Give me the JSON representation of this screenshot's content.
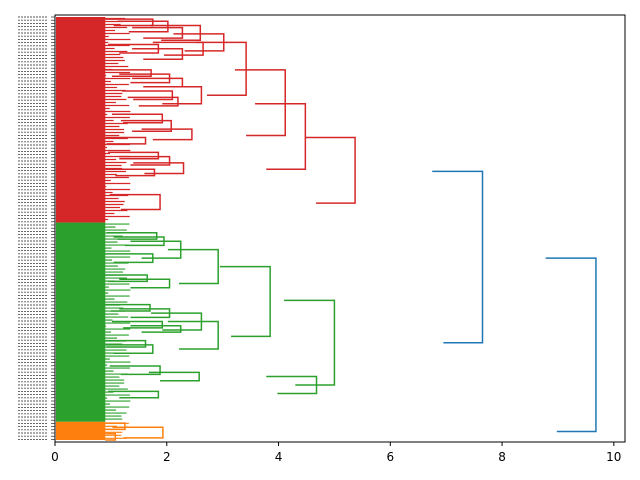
{
  "chart_data": {
    "type": "dendrogram",
    "orientation": "right",
    "title": "",
    "xlabel": "",
    "ylabel": "",
    "xlim": [
      0,
      10.2
    ],
    "xticks": [
      0,
      2,
      4,
      6,
      8,
      10
    ],
    "xtick_labels": [
      "0",
      "2",
      "4",
      "6",
      "8",
      "10"
    ],
    "leaf_labels_legible": false,
    "colors": {
      "cluster_red": "#d62728",
      "cluster_green": "#2ca02c",
      "cluster_orange": "#ff7f0e",
      "above_threshold": "#1f77b4",
      "axis": "#000000",
      "background": "#ffffff"
    },
    "clusters": [
      {
        "name": "red",
        "color": "#d62728",
        "approx_leaf_fraction": 0.486,
        "merge_height": 5.37
      },
      {
        "name": "green",
        "color": "#2ca02c",
        "approx_leaf_fraction": 0.471,
        "merge_height": 5.0
      },
      {
        "name": "orange",
        "color": "#ff7f0e",
        "approx_leaf_fraction": 0.07,
        "merge_height": 1.93
      }
    ],
    "top_merges": [
      {
        "left": "red",
        "right": "green",
        "height": 7.65
      },
      {
        "left": "red+green",
        "right": "orange",
        "height": 9.68
      }
    ],
    "links": [
      {
        "color": "red",
        "y": [
          0.01,
          0.04
        ],
        "h": 1.75
      },
      {
        "color": "red",
        "y": [
          0.02,
          0.07
        ],
        "h": 2.02
      },
      {
        "color": "red",
        "y": [
          0.05,
          0.1
        ],
        "h": 2.28
      },
      {
        "color": "red",
        "y": [
          0.04,
          0.11
        ],
        "h": 2.6
      },
      {
        "color": "red",
        "y": [
          0.13,
          0.17
        ],
        "h": 1.85
      },
      {
        "color": "red",
        "y": [
          0.15,
          0.2
        ],
        "h": 2.28
      },
      {
        "color": "red",
        "y": [
          0.12,
          0.18
        ],
        "h": 2.65
      },
      {
        "color": "red",
        "y": [
          0.08,
          0.16
        ],
        "h": 3.02
      },
      {
        "color": "red",
        "y": [
          0.25,
          0.28
        ],
        "h": 1.72
      },
      {
        "color": "red",
        "y": [
          0.27,
          0.31
        ],
        "h": 2.05
      },
      {
        "color": "red",
        "y": [
          0.29,
          0.33
        ],
        "h": 2.28
      },
      {
        "color": "red",
        "y": [
          0.35,
          0.39
        ],
        "h": 2.1
      },
      {
        "color": "red",
        "y": [
          0.38,
          0.42
        ],
        "h": 2.2
      },
      {
        "color": "red",
        "y": [
          0.33,
          0.41
        ],
        "h": 2.62
      },
      {
        "color": "red",
        "y": [
          0.12,
          0.37
        ],
        "h": 3.42
      },
      {
        "color": "red",
        "y": [
          0.46,
          0.5
        ],
        "h": 1.92
      },
      {
        "color": "red",
        "y": [
          0.49,
          0.54
        ],
        "h": 2.08
      },
      {
        "color": "red",
        "y": [
          0.57,
          0.6
        ],
        "h": 1.62
      },
      {
        "color": "red",
        "y": [
          0.53,
          0.58
        ],
        "h": 2.45
      },
      {
        "color": "red",
        "y": [
          0.25,
          0.56
        ],
        "h": 4.12
      },
      {
        "color": "red",
        "y": [
          0.64,
          0.67
        ],
        "h": 1.85
      },
      {
        "color": "red",
        "y": [
          0.66,
          0.7
        ],
        "h": 2.05
      },
      {
        "color": "red",
        "y": [
          0.72,
          0.75
        ],
        "h": 1.78
      },
      {
        "color": "red",
        "y": [
          0.69,
          0.74
        ],
        "h": 2.3
      },
      {
        "color": "red",
        "y": [
          0.41,
          0.72
        ],
        "h": 4.48
      },
      {
        "color": "red",
        "y": [
          0.84,
          0.91
        ],
        "h": 1.88
      },
      {
        "color": "red",
        "y": [
          0.57,
          0.88
        ],
        "h": 5.37
      },
      {
        "color": "green",
        "y": [
          1.02,
          1.05
        ],
        "h": 1.82
      },
      {
        "color": "green",
        "y": [
          1.04,
          1.08
        ],
        "h": 1.95
      },
      {
        "color": "green",
        "y": [
          1.12,
          1.16
        ],
        "h": 1.75
      },
      {
        "color": "green",
        "y": [
          1.06,
          1.14
        ],
        "h": 2.25
      },
      {
        "color": "green",
        "y": [
          1.22,
          1.25
        ],
        "h": 1.65
      },
      {
        "color": "green",
        "y": [
          1.24,
          1.28
        ],
        "h": 2.05
      },
      {
        "color": "green",
        "y": [
          1.1,
          1.26
        ],
        "h": 2.92
      },
      {
        "color": "green",
        "y": [
          1.36,
          1.39
        ],
        "h": 1.7
      },
      {
        "color": "green",
        "y": [
          1.38,
          1.42
        ],
        "h": 2.05
      },
      {
        "color": "green",
        "y": [
          1.44,
          1.47
        ],
        "h": 1.92
      },
      {
        "color": "green",
        "y": [
          1.46,
          1.49
        ],
        "h": 2.25
      },
      {
        "color": "green",
        "y": [
          1.4,
          1.48
        ],
        "h": 2.62
      },
      {
        "color": "green",
        "y": [
          1.53,
          1.56
        ],
        "h": 1.62
      },
      {
        "color": "green",
        "y": [
          1.55,
          1.59
        ],
        "h": 1.75
      },
      {
        "color": "green",
        "y": [
          1.44,
          1.57
        ],
        "h": 2.92
      },
      {
        "color": "green",
        "y": [
          1.18,
          1.51
        ],
        "h": 3.85
      },
      {
        "color": "green",
        "y": [
          1.65,
          1.69
        ],
        "h": 1.88
      },
      {
        "color": "green",
        "y": [
          1.68,
          1.72
        ],
        "h": 2.58
      },
      {
        "color": "green",
        "y": [
          1.77,
          1.8
        ],
        "h": 1.85
      },
      {
        "color": "green",
        "y": [
          1.7,
          1.78
        ],
        "h": 4.68
      },
      {
        "color": "green",
        "y": [
          1.34,
          1.74
        ],
        "h": 5.0
      },
      {
        "color": "blue",
        "y": [
          0.73,
          1.54
        ],
        "h": 7.65
      },
      {
        "color": "orange",
        "y": [
          1.92,
          1.95
        ],
        "h": 1.25
      },
      {
        "color": "orange",
        "y": [
          1.97,
          2.0
        ],
        "h": 1.08
      },
      {
        "color": "orange",
        "y": [
          1.94,
          1.99
        ],
        "h": 1.93
      },
      {
        "color": "blue",
        "y": [
          1.14,
          1.96
        ],
        "h": 9.68
      }
    ]
  }
}
